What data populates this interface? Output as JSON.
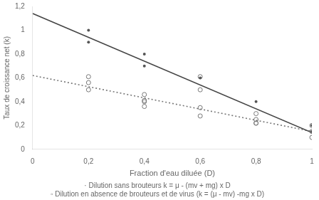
{
  "chart_data": {
    "type": "scatter",
    "xlabel": "Fraction d'eau diluée (D)",
    "ylabel": "Taux de croissance net (k)",
    "xlim": [
      0,
      1
    ],
    "ylim": [
      0,
      1.2
    ],
    "xticks": [
      0,
      {
        "value": 0.2,
        "label": "0,2"
      },
      {
        "value": 0.4,
        "label": "0,4"
      },
      {
        "value": 0.6,
        "label": "0,6"
      },
      {
        "value": 0.8,
        "label": "0,8"
      },
      1
    ],
    "yticks": [
      0,
      {
        "value": 0.2,
        "label": "0,2"
      },
      {
        "value": 0.4,
        "label": "0,4"
      },
      {
        "value": 0.6,
        "label": "0,6"
      },
      {
        "value": 0.8,
        "label": "0,8"
      },
      1,
      {
        "value": 1.2,
        "label": "1,2"
      }
    ],
    "grid": false,
    "series": [
      {
        "type": "line",
        "color": "#444444",
        "line_style": "solid",
        "x": [
          0,
          1
        ],
        "values": [
          1.14,
          0.14
        ]
      },
      {
        "type": "line",
        "color": "#777777",
        "line_style": "dotted",
        "x": [
          0,
          1
        ],
        "values": [
          0.62,
          0.15
        ]
      },
      {
        "type": "scatter",
        "color": "#555555",
        "marker": "dot",
        "x": [
          0.2,
          0.2,
          0.4,
          0.4,
          0.6,
          0.8,
          1.0,
          1.0
        ],
        "values": [
          1.0,
          0.9,
          0.8,
          0.7,
          0.6,
          0.4,
          0.2,
          0.15
        ]
      },
      {
        "type": "scatter",
        "color": "#777777",
        "marker": "open_circle",
        "x": [
          0.2,
          0.2,
          0.2,
          0.4,
          0.4,
          0.4,
          0.4,
          0.6,
          0.6,
          0.6,
          0.6,
          0.8,
          0.8,
          0.8,
          0.8,
          1.0,
          1.0,
          1.0
        ],
        "values": [
          0.61,
          0.56,
          0.5,
          0.46,
          0.41,
          0.4,
          0.36,
          0.61,
          0.5,
          0.35,
          0.28,
          0.3,
          0.25,
          0.22,
          0.22,
          0.2,
          0.15,
          0.1
        ]
      }
    ],
    "annotations": [
      "· Dilution sans brouteurs k = μ - (mv + mg) x D",
      "◦ Dilution en absence de brouteurs et de virus (k = (μ - mv) -mg x D)"
    ]
  }
}
